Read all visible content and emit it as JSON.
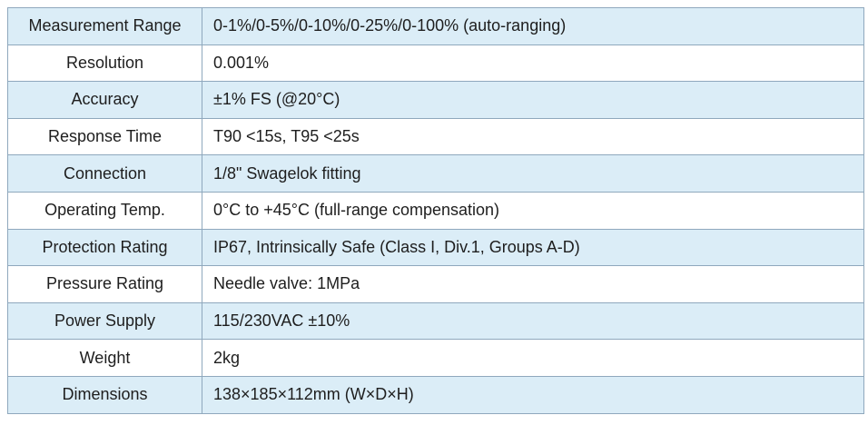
{
  "table": {
    "rows": [
      [
        "Measurement Range",
        "0-1%/0-5%/0-10%/0-25%/0-100% (auto-ranging)"
      ],
      [
        "Resolution",
        "0.001%"
      ],
      [
        "Accuracy",
        "±1% FS (@20°C)"
      ],
      [
        "Response Time",
        "T90 <15s, T95 <25s"
      ],
      [
        "Connection",
        "1/8\" Swagelok fitting"
      ],
      [
        "Operating Temp.",
        "0°C to +45°C (full-range compensation)"
      ],
      [
        "Protection Rating",
        "IP67, Intrinsically Safe (Class I, Div.1, Groups A-D)"
      ],
      [
        "Pressure Rating",
        "Needle valve: 1MPa"
      ],
      [
        "Power Supply",
        "115/230VAC ±10%"
      ],
      [
        "Weight",
        "2kg"
      ],
      [
        "Dimensions",
        "138×185×112mm (W×D×H)"
      ]
    ]
  }
}
